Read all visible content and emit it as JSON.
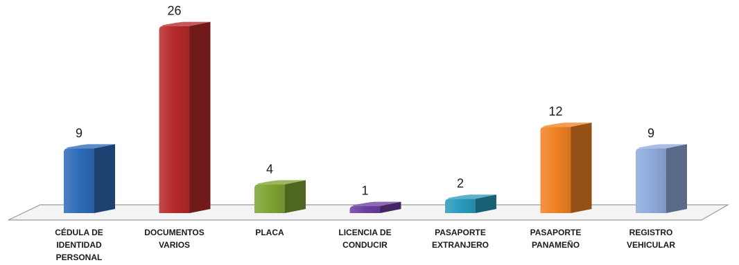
{
  "chart_data": {
    "type": "bar",
    "categories": [
      "CÉDULA DE\nIDENTIDAD\nPERSONAL",
      "DOCUMENTOS\nVARIOS",
      "PLACA",
      "LICENCIA DE\nCONDUCIR",
      "PASAPORTE\nEXTRANJERO",
      "PASAPORTE\nPANAMEÑO",
      "REGISTRO\nVEHICULAR"
    ],
    "values": [
      9,
      26,
      4,
      1,
      2,
      12,
      9
    ],
    "value_labels": [
      "9",
      "26",
      "4",
      "1",
      "2",
      "12",
      "9"
    ],
    "colors": [
      "#2e6bb8",
      "#b52a2a",
      "#7fa434",
      "#6b3fa0",
      "#2a9bbd",
      "#f08122",
      "#8faadc"
    ],
    "grid": false,
    "legend": "none",
    "style": "3d-column"
  }
}
